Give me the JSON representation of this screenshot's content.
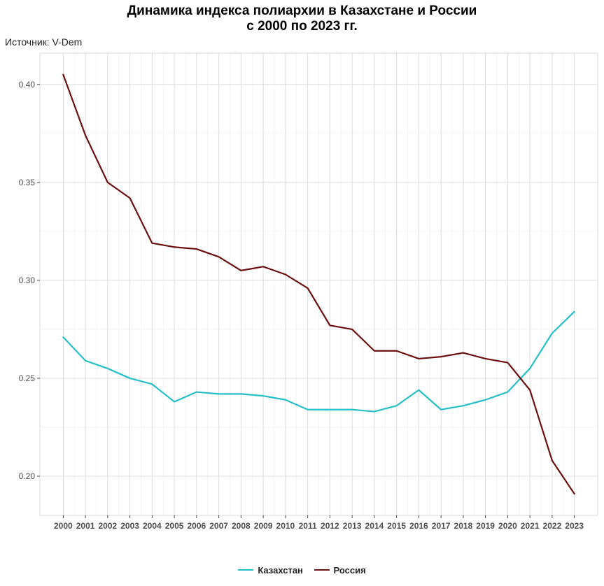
{
  "chart_data": {
    "type": "line",
    "title_lines": [
      "Динамика индекса полиархии в Казахстане и России",
      "с 2000 по 2023 гг."
    ],
    "caption": "Источник: V-Dem",
    "xlabel": "",
    "ylabel": "",
    "x": [
      2000,
      2001,
      2002,
      2003,
      2004,
      2005,
      2006,
      2007,
      2008,
      2009,
      2010,
      2011,
      2012,
      2013,
      2014,
      2015,
      2016,
      2017,
      2018,
      2019,
      2020,
      2021,
      2022,
      2023
    ],
    "x_tick_labels": [
      "2000",
      "2001",
      "2002",
      "2003",
      "2004",
      "2005",
      "2006",
      "2007",
      "2008",
      "2009",
      "2010",
      "2011",
      "2012",
      "2013",
      "2014",
      "2015",
      "2016",
      "2017",
      "2018",
      "2019",
      "2020",
      "2021",
      "2022",
      "2023"
    ],
    "y_ticks": [
      0.2,
      0.25,
      0.3,
      0.35,
      0.4
    ],
    "y_tick_labels": [
      "0.20",
      "0.25",
      "0.30",
      "0.35",
      "0.40"
    ],
    "ylim": [
      0.18,
      0.416
    ],
    "grid": true,
    "legend_position": "bottom",
    "series": [
      {
        "name": "Казахстан",
        "color": "#26bfc8",
        "values": [
          0.271,
          0.259,
          0.255,
          0.25,
          0.247,
          0.238,
          0.243,
          0.242,
          0.242,
          0.241,
          0.239,
          0.234,
          0.234,
          0.234,
          0.233,
          0.236,
          0.244,
          0.234,
          0.236,
          0.239,
          0.243,
          0.255,
          0.273,
          0.284
        ]
      },
      {
        "name": "Россия",
        "color": "#6b0f0f",
        "values": [
          0.405,
          0.374,
          0.35,
          0.342,
          0.319,
          0.317,
          0.316,
          0.312,
          0.305,
          0.307,
          0.303,
          0.296,
          0.277,
          0.275,
          0.264,
          0.264,
          0.26,
          0.261,
          0.263,
          0.26,
          0.258,
          0.244,
          0.208,
          0.191
        ]
      }
    ]
  }
}
